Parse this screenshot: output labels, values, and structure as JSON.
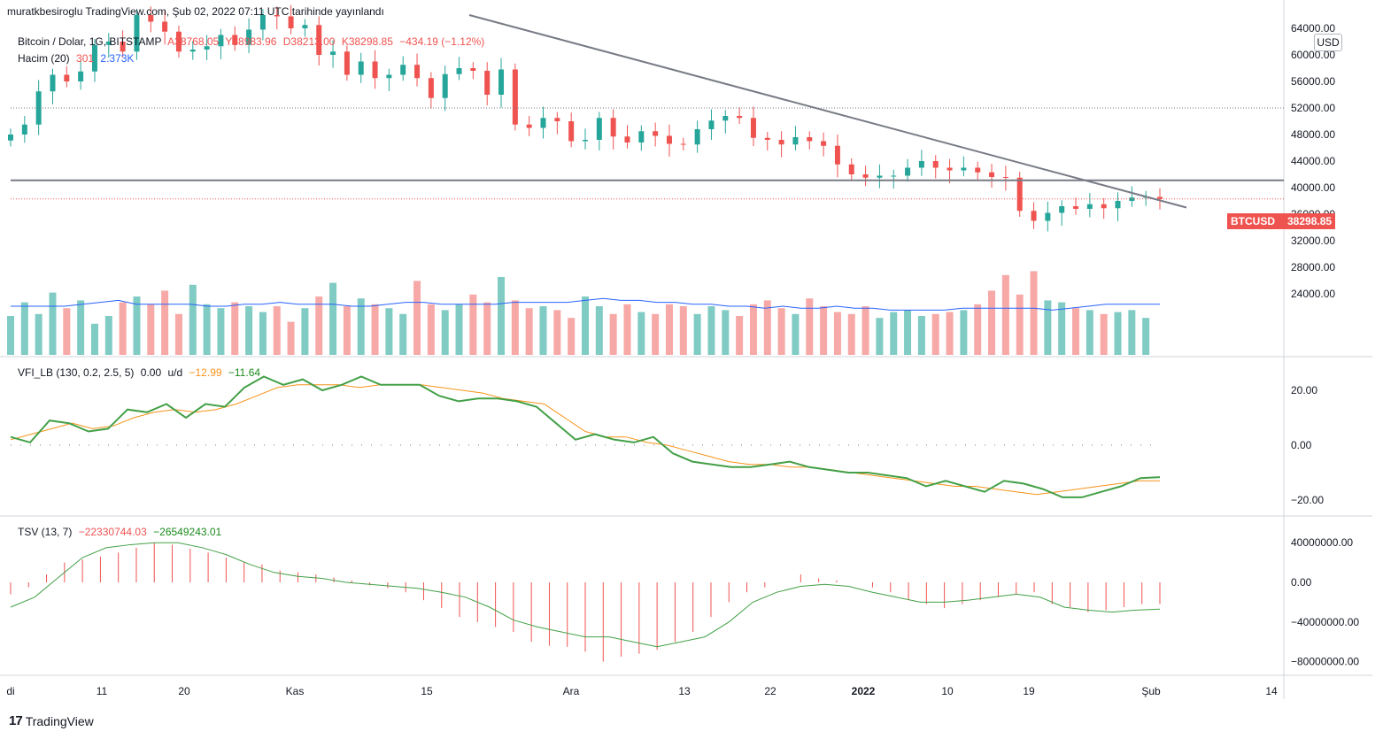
{
  "header": {
    "published": "muratkbesiroglu TradingView.com, Şub 02, 2022 07:11 UTC tarihinde yayınlandı"
  },
  "legend_main": {
    "title": "Bitcoin / Dolar, 1G, BITSTAMP",
    "o": "A38768.05",
    "h": "Y38983.96",
    "l": "D38213.00",
    "c": "K38298.85",
    "chg": "−434.19 (−1.12%)"
  },
  "legend_vol": {
    "name": "Hacim (20)",
    "v1": "301",
    "v2": "2.373K"
  },
  "legend_vfi": {
    "name": "VFI_LB (130, 0.2, 2.5, 5)",
    "v0": "0.00",
    "ud": "u/d",
    "v1": "−12.99",
    "v2": "−11.64"
  },
  "legend_tsv": {
    "name": "TSV (13, 7)",
    "v1": "−22330744.03",
    "v2": "−26549243.01"
  },
  "currency": "USD",
  "price_tag": {
    "symbol": "BTCUSD",
    "price": "38298.85"
  },
  "footer": {
    "brand": "TradingView",
    "logo": "17"
  },
  "colors": {
    "up": "#26a69a",
    "down": "#ef5350",
    "trend": "#787b86",
    "vfi": "#43a047",
    "vfi_signal": "#f7931a",
    "vol_ma": "#2962ff"
  },
  "chart_data": [
    {
      "type": "candlestick",
      "title": "Bitcoin / Dolar, 1G, BITSTAMP",
      "ylim": [
        28000,
        64000
      ],
      "yticks": [
        "64000.00",
        "60000.00",
        "56000.00",
        "52000.00",
        "48000.00",
        "44000.00",
        "40000.00",
        "36000.00",
        "32000.00",
        "28000.00",
        "24000.00"
      ],
      "xticks": [
        "di",
        "11",
        "20",
        "Kas",
        "15",
        "Ara",
        "13",
        "22",
        "2022",
        "10",
        "19",
        "Şub",
        "14"
      ],
      "series": [
        {
          "name": "BTCUSD",
          "close": [
            48000,
            49500,
            54500,
            57000,
            56000,
            57500,
            61500,
            62000,
            60500,
            66000,
            65000,
            63500,
            60500,
            60800,
            61300,
            63000,
            61500,
            63800,
            66000,
            65800,
            64000,
            64500,
            60000,
            60500,
            57000,
            59000,
            56500,
            57000,
            58500,
            56500,
            53500,
            57100,
            58000,
            57600,
            54000,
            57800,
            49500,
            49000,
            50500,
            50000,
            47000,
            47200,
            50500,
            47700,
            46800,
            48500,
            47800,
            46600,
            46500,
            48800,
            50100,
            50800,
            50500,
            47500,
            47200,
            46500,
            47600,
            47000,
            46300,
            43500,
            42000,
            41500,
            41800,
            41800,
            43000,
            44000,
            43000,
            42600,
            43000,
            42300,
            41600,
            41500,
            36500,
            35000,
            36200,
            37200,
            36800,
            37500,
            36900,
            38000,
            38500,
            38600,
            38300
          ]
        },
        {
          "name": "Trendline",
          "points": [
            [
              46000,
              66000
            ],
            [
              93000,
              37000
            ]
          ]
        },
        {
          "name": "Level",
          "value": 41100
        },
        {
          "name": "Level",
          "value": 52000
        }
      ]
    },
    {
      "type": "bar",
      "title": "Hacim (20)",
      "series": [
        {
          "name": "Volume",
          "values": [
            2.0,
            2.7,
            2.1,
            3.2,
            2.4,
            2.8,
            1.6,
            2.0,
            2.7,
            3.0,
            2.6,
            3.3,
            2.1,
            3.6,
            2.6,
            2.4,
            2.7,
            2.5,
            2.2,
            2.5,
            1.7,
            2.4,
            3.0,
            3.7,
            2.5,
            2.9,
            2.6,
            2.4,
            2.1,
            3.8,
            2.6,
            2.3,
            2.6,
            3.1,
            2.7,
            4.0,
            2.8,
            2.4,
            2.5,
            2.3,
            1.9,
            3.0,
            2.5,
            2.1,
            2.6,
            2.2,
            2.1,
            2.6,
            2.5,
            2.1,
            2.5,
            2.3,
            2.0,
            2.6,
            2.8,
            2.4,
            2.1,
            2.9,
            2.5,
            2.2,
            2.1,
            2.5,
            1.9,
            2.2,
            2.3,
            2.0,
            2.1,
            2.2,
            2.3,
            2.6,
            3.3,
            4.1,
            3.1,
            4.3,
            2.8,
            2.7,
            2.4,
            2.3,
            2.1,
            2.2,
            2.3,
            1.9
          ]
        },
        {
          "name": "MA",
          "values": [
            2.5,
            2.5,
            2.5,
            2.5,
            2.6,
            2.7,
            2.8,
            2.6,
            2.6,
            2.6,
            2.6,
            2.5,
            2.5,
            2.6,
            2.6,
            2.7,
            2.6,
            2.6,
            2.6,
            2.5,
            2.5,
            2.6,
            2.7,
            2.7,
            2.6,
            2.6,
            2.6,
            2.6,
            2.7,
            2.7,
            2.7,
            2.7,
            2.8,
            2.9,
            2.8,
            2.8,
            2.7,
            2.7,
            2.6,
            2.6,
            2.5,
            2.5,
            2.4,
            2.5,
            2.4,
            2.4,
            2.5,
            2.4,
            2.4,
            2.3,
            2.3,
            2.3,
            2.3,
            2.4,
            2.4,
            2.4,
            2.4,
            2.4,
            2.3,
            2.4,
            2.5,
            2.6,
            2.6,
            2.6,
            2.6
          ]
        }
      ]
    },
    {
      "type": "line",
      "title": "VFI_LB (130, 0.2, 2.5, 5)",
      "ylim": [
        -25,
        30
      ],
      "yticks": [
        "20.00",
        "0.00",
        "−20.00"
      ],
      "series": [
        {
          "name": "VFI",
          "values": [
            3,
            1,
            9,
            8,
            5,
            6,
            13,
            12,
            15,
            10,
            15,
            14,
            21,
            25,
            22,
            24,
            20,
            22,
            25,
            22,
            22,
            22,
            18,
            16,
            17,
            17,
            16,
            14,
            8,
            2,
            4,
            2,
            1,
            3,
            -3,
            -6,
            -7,
            -8,
            -8,
            -7,
            -6,
            -8,
            -9,
            -10,
            -10,
            -11,
            -12,
            -15,
            -13,
            -15,
            -17,
            -13,
            -14,
            -16,
            -19,
            -19,
            -17,
            -15,
            -12,
            -11.64
          ]
        },
        {
          "name": "Signal",
          "values": [
            2,
            4,
            6,
            8,
            6,
            7,
            10,
            12,
            13,
            12,
            13,
            15,
            18,
            21,
            22,
            22,
            22,
            21,
            22,
            22,
            22,
            21,
            20,
            19,
            17,
            16,
            15,
            10,
            5,
            3,
            3,
            1,
            0,
            -2,
            -4,
            -6,
            -7,
            -7,
            -8,
            -8,
            -9,
            -10,
            -11,
            -12,
            -13,
            -14,
            -15,
            -15,
            -16,
            -17,
            -18,
            -17,
            -16,
            -15,
            -14,
            -13,
            -12.99
          ]
        }
      ]
    },
    {
      "type": "bar",
      "title": "TSV (13, 7)",
      "ylim": [
        -85000000,
        50000000
      ],
      "yticks": [
        "40000000.00",
        "0.00",
        "−40000000.00",
        "−80000000.00"
      ],
      "series": [
        {
          "name": "TSV",
          "values": [
            -12,
            -5,
            8,
            20,
            23,
            26,
            30,
            35,
            40,
            38,
            34,
            30,
            25,
            20,
            18,
            12,
            10,
            8,
            5,
            2,
            -3,
            -6,
            -10,
            -18,
            -26,
            -35,
            -40,
            -45,
            -50,
            -60,
            -64,
            -65,
            -70,
            -80,
            -75,
            -72,
            -68,
            -60,
            -50,
            -35,
            -20,
            -10,
            -5,
            0,
            8,
            4,
            2,
            0,
            -5,
            -10,
            -18,
            -22,
            -26,
            -22,
            -18,
            -15,
            -12,
            -10,
            -22,
            -25,
            -30,
            -28,
            -25,
            -22,
            -22
          ]
        },
        {
          "name": "Signal",
          "values": [
            -25,
            -15,
            5,
            25,
            35,
            38,
            40,
            40,
            35,
            28,
            18,
            10,
            6,
            4,
            0,
            -2,
            -4,
            -6,
            -10,
            -15,
            -25,
            -38,
            -45,
            -50,
            -55,
            -55,
            -60,
            -65,
            -60,
            -55,
            -40,
            -20,
            -10,
            -4,
            -2,
            -4,
            -10,
            -15,
            -20,
            -20,
            -18,
            -15,
            -12,
            -15,
            -25,
            -28,
            -30,
            -28,
            -27
          ]
        }
      ]
    }
  ]
}
